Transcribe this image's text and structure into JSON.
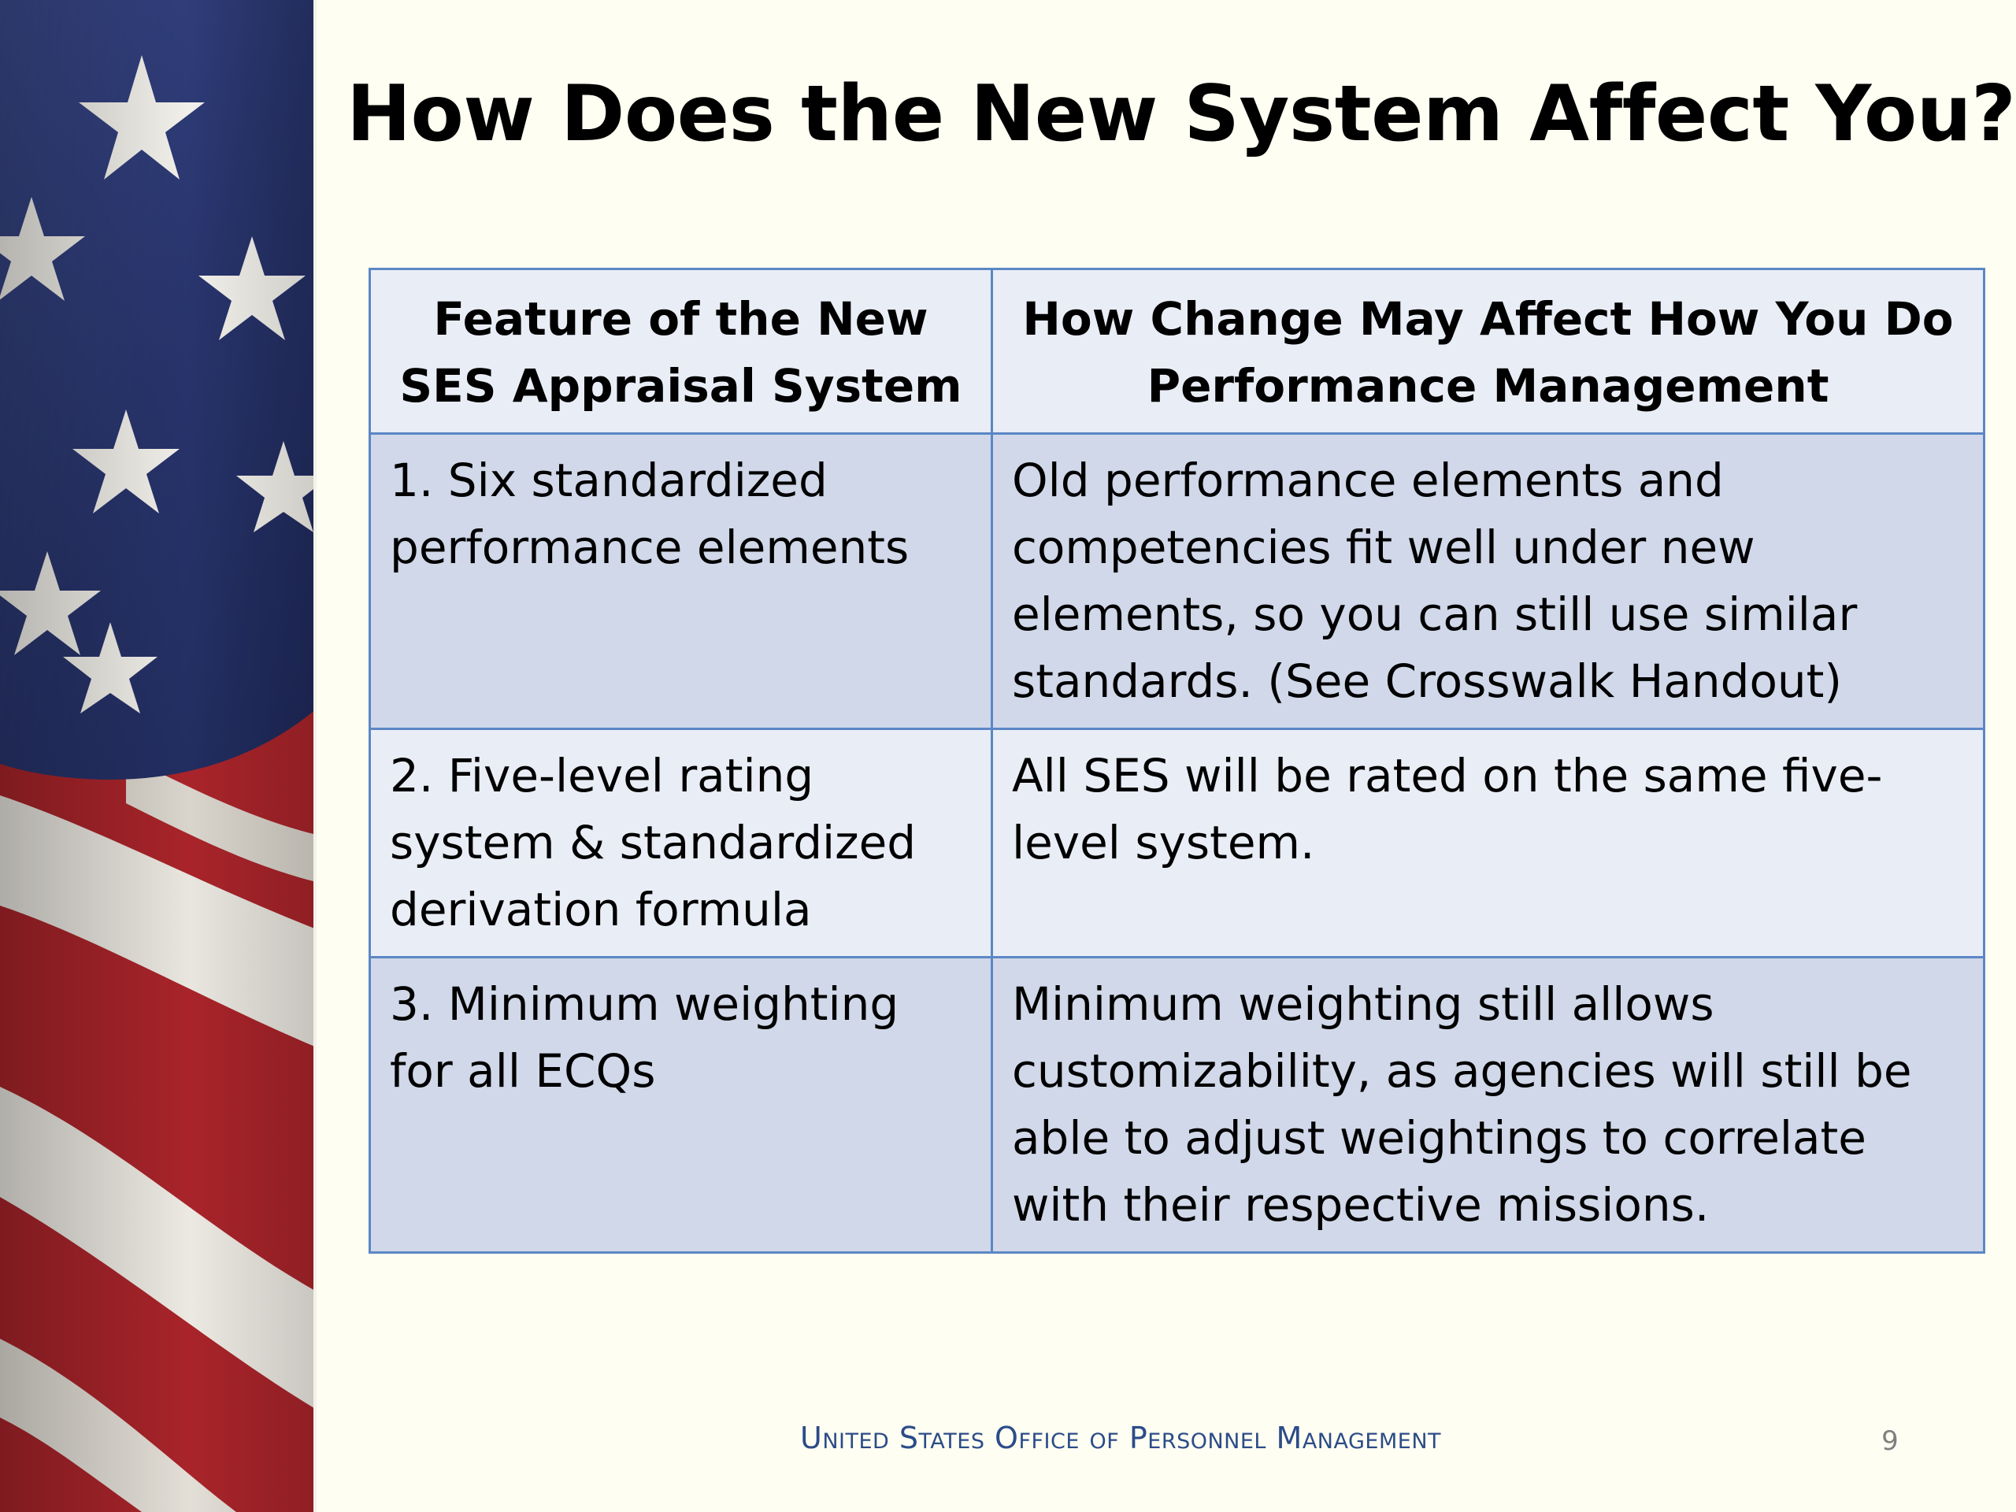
{
  "slide": {
    "title": "How Does the New System Affect You?",
    "footer": "United States Office of Personnel Management",
    "page_number": "9"
  },
  "table": {
    "headers": [
      "Feature of the New SES Appraisal System",
      "How Change May Affect How You Do Performance Management"
    ],
    "rows": [
      {
        "feature": "1. Six standardized performance elements",
        "effect": "Old performance elements  and competencies fit well under new elements, so you can still use similar standards. (See Crosswalk Handout)"
      },
      {
        "feature": "2. Five-level rating system & standardized derivation formula",
        "effect": "All SES will be rated on the same five-level system."
      },
      {
        "feature": "3. Minimum weighting for all ECQs",
        "effect": "Minimum weighting still allows customizability, as agencies will still be able to adjust weightings to correlate with their respective missions."
      }
    ]
  },
  "colors": {
    "background": "#fffef2",
    "border": "#5b87c5",
    "row_dark": "#d0d8e9",
    "row_light": "#e9edf6",
    "footer_text": "#2b4c88",
    "flag_blue": "#2f3c78",
    "flag_red": "#b8282c"
  }
}
